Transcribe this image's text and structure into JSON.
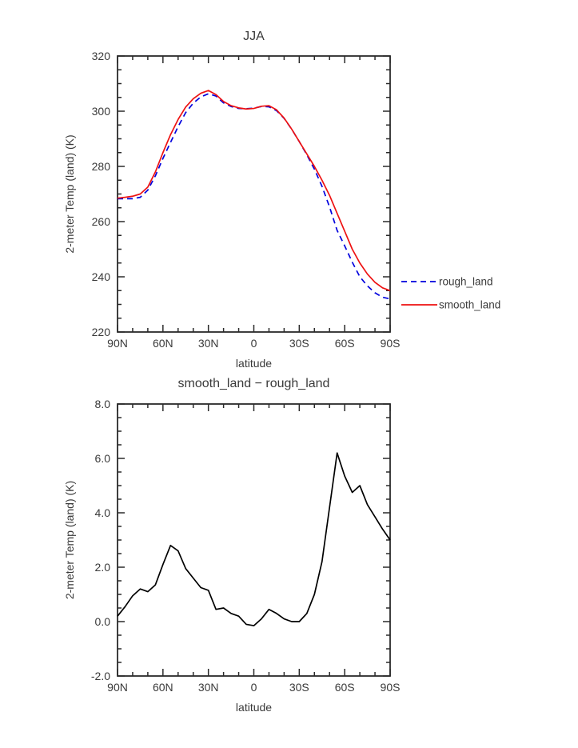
{
  "page": {
    "background": "#ffffff",
    "axis_color": "#2a2a2a",
    "text_color": "#3a3a3a"
  },
  "chart_data": [
    {
      "id": "top",
      "type": "line",
      "title": "JJA",
      "xlabel": "latitude",
      "ylabel": "2-meter Temp (land) (K)",
      "xlim": [
        90,
        -90
      ],
      "ylim": [
        220,
        320
      ],
      "x_tick_values": [
        90,
        60,
        30,
        0,
        -30,
        -60,
        -90
      ],
      "x_tick_labels": [
        "90N",
        "60N",
        "30N",
        "0",
        "30S",
        "60S",
        "90S"
      ],
      "x_minor_step": 10,
      "y_ticks": [
        220,
        240,
        260,
        280,
        300,
        320
      ],
      "y_tick_labels": [
        "220",
        "240",
        "260",
        "280",
        "300",
        "320"
      ],
      "y_minor_step": 5,
      "grid": false,
      "legend_position": "outside-right",
      "legend_entries": [
        "rough_land",
        "smooth_land"
      ],
      "series": [
        {
          "name": "rough_land",
          "color": "#0000dd",
          "style": "dashed",
          "x": [
            90,
            85,
            80,
            75,
            70,
            65,
            60,
            55,
            50,
            45,
            40,
            35,
            30,
            25,
            20,
            15,
            10,
            5,
            0,
            -5,
            -10,
            -15,
            -20,
            -25,
            -30,
            -35,
            -40,
            -45,
            -50,
            -55,
            -60,
            -65,
            -70,
            -75,
            -80,
            -85,
            -90
          ],
          "y": [
            268.3,
            268.3,
            268.3,
            268.8,
            271.4,
            276.6,
            282.9,
            288.7,
            294.4,
            299.5,
            302.9,
            305.2,
            306.3,
            305.5,
            303.0,
            301.7,
            301.0,
            300.9,
            301.1,
            301.7,
            301.6,
            300.2,
            297.4,
            293.5,
            289.0,
            284.2,
            279.0,
            272.8,
            265.3,
            256.8,
            251.2,
            245.3,
            240.0,
            236.7,
            234.2,
            232.6,
            232.0
          ]
        },
        {
          "name": "smooth_land",
          "color": "#ee1111",
          "style": "solid",
          "x": [
            90,
            85,
            80,
            75,
            70,
            65,
            60,
            55,
            50,
            45,
            40,
            35,
            30,
            25,
            20,
            15,
            10,
            5,
            0,
            -5,
            -10,
            -15,
            -20,
            -25,
            -30,
            -35,
            -40,
            -45,
            -50,
            -55,
            -60,
            -65,
            -70,
            -75,
            -80,
            -85,
            -90
          ],
          "y": [
            268.5,
            268.8,
            269.2,
            270.0,
            272.5,
            278.0,
            285.0,
            291.5,
            297.0,
            301.5,
            304.5,
            306.5,
            307.5,
            306.0,
            303.5,
            302.0,
            301.2,
            300.8,
            301.0,
            301.8,
            302.0,
            300.5,
            297.5,
            293.5,
            289.0,
            284.5,
            280.0,
            275.0,
            269.5,
            263.0,
            256.5,
            250.0,
            245.0,
            241.0,
            238.0,
            236.0,
            235.0
          ]
        }
      ]
    },
    {
      "id": "bottom",
      "type": "line",
      "title": "smooth_land − rough_land",
      "xlabel": "latitude",
      "ylabel": "2-meter Temp (land) (K)",
      "xlim": [
        90,
        -90
      ],
      "ylim": [
        -2,
        8
      ],
      "x_tick_values": [
        90,
        60,
        30,
        0,
        -30,
        -60,
        -90
      ],
      "x_tick_labels": [
        "90N",
        "60N",
        "30N",
        "0",
        "30S",
        "60S",
        "90S"
      ],
      "x_minor_step": 10,
      "y_ticks": [
        -2,
        0,
        2,
        4,
        6,
        8
      ],
      "y_tick_labels": [
        "-2.0",
        "0.0",
        "2.0",
        "4.0",
        "6.0",
        "8.0"
      ],
      "y_minor_step": 0.5,
      "grid": false,
      "legend_position": "none",
      "legend_entries": [],
      "series": [
        {
          "name": "smooth_land - rough_land",
          "color": "#000000",
          "style": "solid",
          "x": [
            90,
            85,
            80,
            75,
            70,
            65,
            60,
            55,
            50,
            45,
            40,
            35,
            30,
            25,
            20,
            15,
            10,
            5,
            0,
            -5,
            -10,
            -15,
            -20,
            -25,
            -30,
            -35,
            -40,
            -45,
            -50,
            -55,
            -60,
            -65,
            -70,
            -75,
            -80,
            -85,
            -90
          ],
          "y": [
            0.2,
            0.55,
            0.95,
            1.2,
            1.1,
            1.35,
            2.1,
            2.8,
            2.6,
            1.95,
            1.6,
            1.25,
            1.15,
            0.45,
            0.5,
            0.3,
            0.2,
            -0.1,
            -0.15,
            0.1,
            0.45,
            0.3,
            0.1,
            0.0,
            0.0,
            0.3,
            1.0,
            2.2,
            4.2,
            6.2,
            5.35,
            4.75,
            5.0,
            4.3,
            3.85,
            3.4,
            3.0
          ]
        }
      ]
    }
  ]
}
